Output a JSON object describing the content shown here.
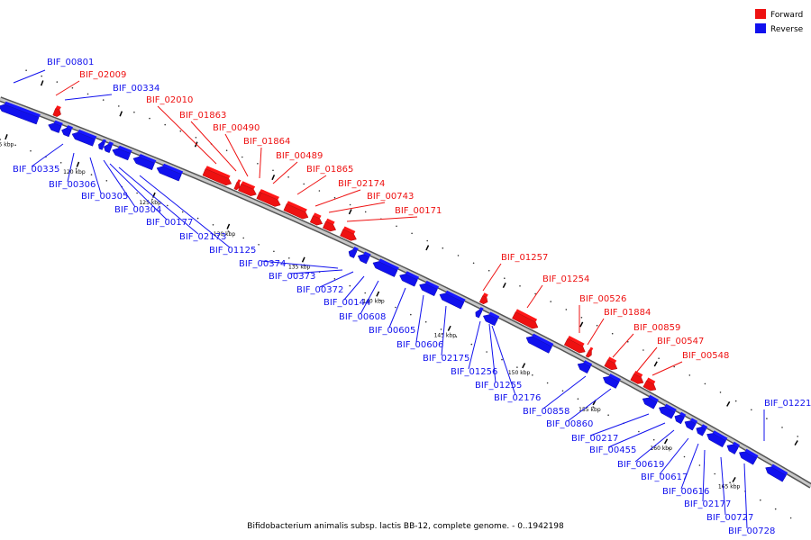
{
  "colors": {
    "forward": "#ee1111",
    "reverse": "#1111ee",
    "backbone": "#999999"
  },
  "legend": {
    "forward": "Forward",
    "reverse": "Reverse"
  },
  "caption": "Bifidobacterium animalis subsp. lactis BB-12, complete genome. - 0..1942198",
  "ticks": [
    "115 kbp",
    "120 kbp",
    "125 kbp",
    "130 kbp",
    "135 kbp",
    "140 kbp",
    "145 kbp",
    "150 kbp",
    "155 kbp",
    "160 kbp",
    "165 kbp"
  ],
  "genes": [
    {
      "id": "BIF_00801",
      "strand": "reverse"
    },
    {
      "id": "BIF_02009",
      "strand": "forward"
    },
    {
      "id": "BIF_00334",
      "strand": "reverse"
    },
    {
      "id": "BIF_02010",
      "strand": "forward"
    },
    {
      "id": "BIF_01863",
      "strand": "forward"
    },
    {
      "id": "BIF_00490",
      "strand": "forward"
    },
    {
      "id": "BIF_01864",
      "strand": "forward"
    },
    {
      "id": "BIF_00489",
      "strand": "forward"
    },
    {
      "id": "BIF_01865",
      "strand": "forward"
    },
    {
      "id": "BIF_02174",
      "strand": "forward"
    },
    {
      "id": "BIF_00743",
      "strand": "forward"
    },
    {
      "id": "BIF_00171",
      "strand": "forward"
    },
    {
      "id": "BIF_00335",
      "strand": "reverse"
    },
    {
      "id": "BIF_00306",
      "strand": "reverse"
    },
    {
      "id": "BIF_00305",
      "strand": "reverse"
    },
    {
      "id": "BIF_00304",
      "strand": "reverse"
    },
    {
      "id": "BIF_00177",
      "strand": "reverse"
    },
    {
      "id": "BIF_02173",
      "strand": "reverse"
    },
    {
      "id": "BIF_01125",
      "strand": "reverse"
    },
    {
      "id": "BIF_00374",
      "strand": "reverse"
    },
    {
      "id": "BIF_00373",
      "strand": "reverse"
    },
    {
      "id": "BIF_00372",
      "strand": "reverse"
    },
    {
      "id": "BIF_00144",
      "strand": "reverse"
    },
    {
      "id": "BIF_00608",
      "strand": "reverse"
    },
    {
      "id": "BIF_00605",
      "strand": "reverse"
    },
    {
      "id": "BIF_00606",
      "strand": "reverse"
    },
    {
      "id": "BIF_02175",
      "strand": "reverse"
    },
    {
      "id": "BIF_01256",
      "strand": "reverse"
    },
    {
      "id": "BIF_01255",
      "strand": "reverse"
    },
    {
      "id": "BIF_02176",
      "strand": "reverse"
    },
    {
      "id": "BIF_01257",
      "strand": "forward"
    },
    {
      "id": "BIF_01254",
      "strand": "forward"
    },
    {
      "id": "BIF_00526",
      "strand": "forward"
    },
    {
      "id": "BIF_01884",
      "strand": "forward"
    },
    {
      "id": "BIF_00859",
      "strand": "forward"
    },
    {
      "id": "BIF_00547",
      "strand": "forward"
    },
    {
      "id": "BIF_00548",
      "strand": "forward"
    },
    {
      "id": "BIF_00858",
      "strand": "reverse"
    },
    {
      "id": "BIF_00860",
      "strand": "reverse"
    },
    {
      "id": "BIF_00217",
      "strand": "reverse"
    },
    {
      "id": "BIF_00455",
      "strand": "reverse"
    },
    {
      "id": "BIF_00619",
      "strand": "reverse"
    },
    {
      "id": "BIF_00617",
      "strand": "reverse"
    },
    {
      "id": "BIF_00616",
      "strand": "reverse"
    },
    {
      "id": "BIF_02177",
      "strand": "reverse"
    },
    {
      "id": "BIF_00727",
      "strand": "reverse"
    },
    {
      "id": "BIF_00728",
      "strand": "reverse"
    },
    {
      "id": "BIF_01221",
      "strand": "reverse"
    }
  ]
}
